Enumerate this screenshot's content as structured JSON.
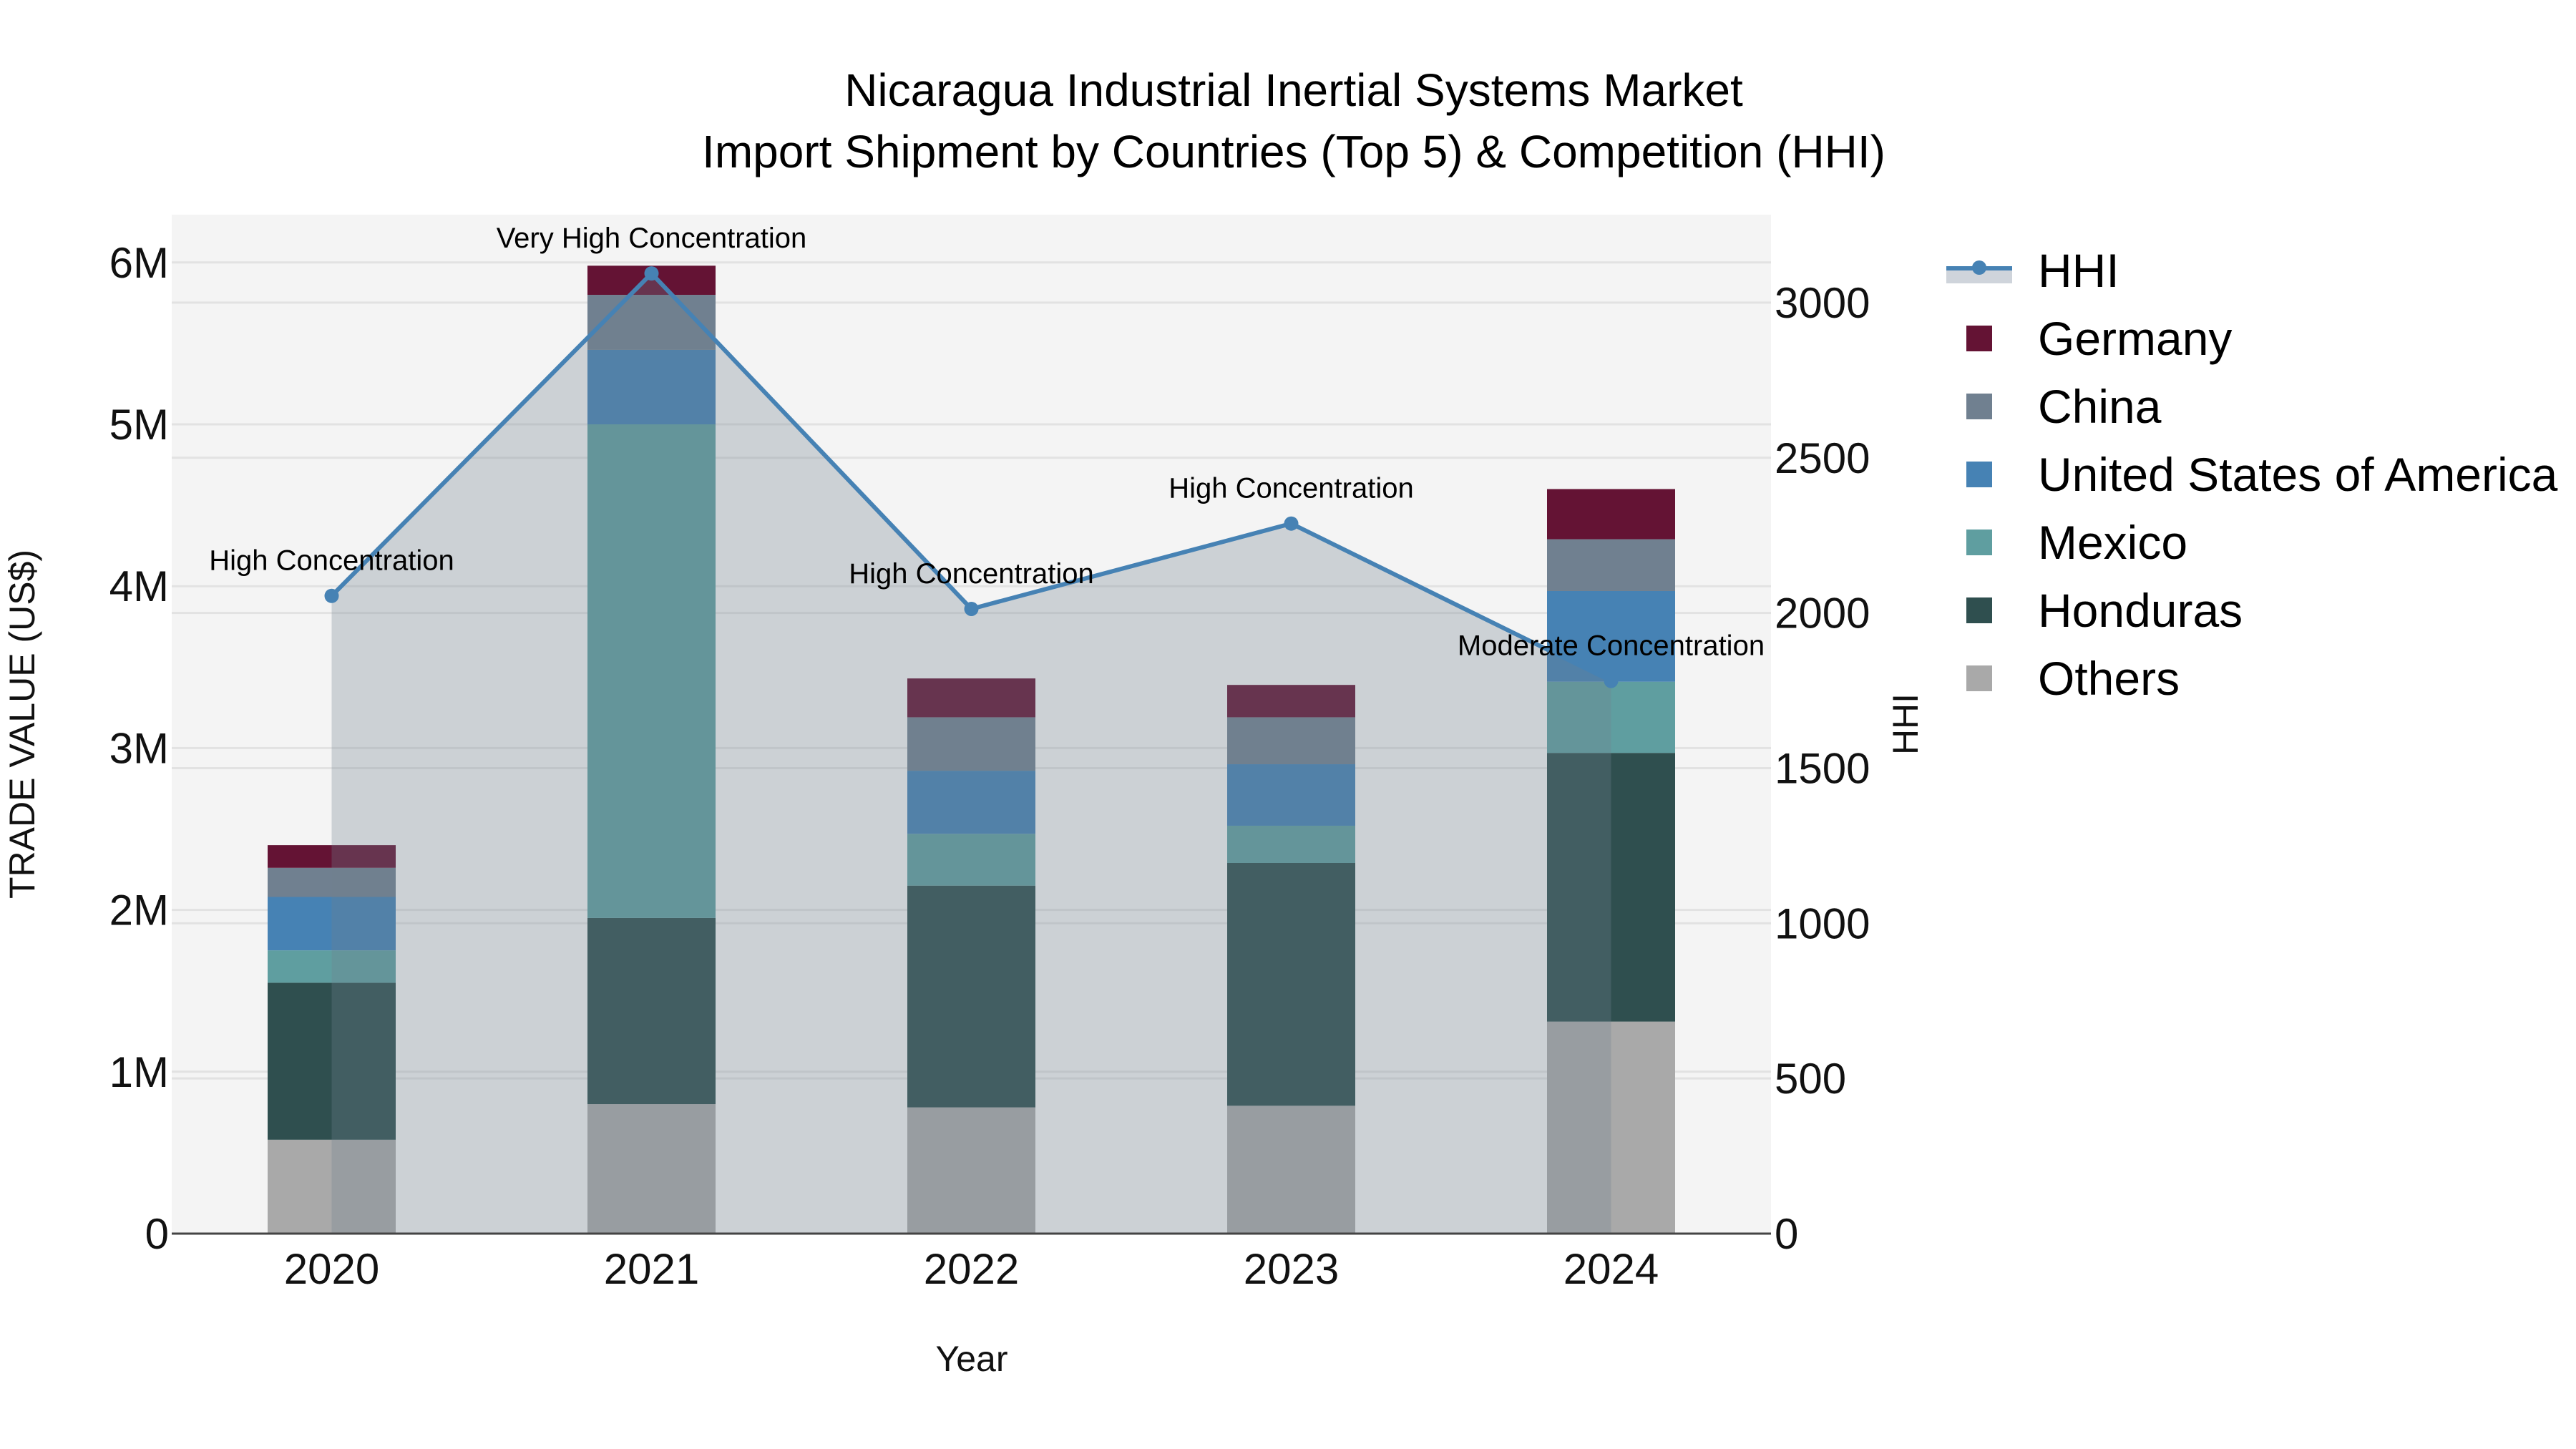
{
  "title": {
    "line1": "Nicaragua Industrial Inertial Systems Market",
    "line2": "Import Shipment by Countries (Top 5) & Competition (HHI)"
  },
  "axes": {
    "x_title": "Year",
    "y_left_title": "TRADE VALUE (US$)",
    "y_right_title": "HHI",
    "y_left_ticks": [
      "0",
      "1M",
      "2M",
      "3M",
      "4M",
      "5M",
      "6M"
    ],
    "y_right_ticks": [
      "0",
      "500",
      "1000",
      "1500",
      "2000",
      "2500",
      "3000"
    ],
    "x_ticks": [
      "2020",
      "2021",
      "2022",
      "2023",
      "2024"
    ]
  },
  "legend": {
    "items": [
      {
        "label": "HHI",
        "type": "line",
        "color": "#4682b4"
      },
      {
        "label": "Germany",
        "type": "bar",
        "color": "#641334"
      },
      {
        "label": "China",
        "type": "bar",
        "color": "#708090"
      },
      {
        "label": "United States of America",
        "type": "bar",
        "color": "#4682b4"
      },
      {
        "label": "Mexico",
        "type": "bar",
        "color": "#5f9ea0"
      },
      {
        "label": "Honduras",
        "type": "bar",
        "color": "#2f4f4f"
      },
      {
        "label": "Others",
        "type": "bar",
        "color": "#a9a9a9"
      }
    ]
  },
  "annotations": [
    {
      "year": "2020",
      "text": "High Concentration"
    },
    {
      "year": "2021",
      "text": "Very High Concentration"
    },
    {
      "year": "2022",
      "text": "High Concentration"
    },
    {
      "year": "2023",
      "text": "High Concentration"
    },
    {
      "year": "2024",
      "text": "Moderate Concentration"
    }
  ],
  "chart_data": {
    "type": "bar",
    "title": "Nicaragua Industrial Inertial Systems Market Import Shipment by Countries (Top 5) & Competition (HHI)",
    "xlabel": "Year",
    "ylabel": "TRADE VALUE (US$)",
    "y2label": "HHI",
    "stacked": true,
    "categories": [
      "2020",
      "2021",
      "2022",
      "2023",
      "2024"
    ],
    "ylim": [
      0,
      6300000
    ],
    "y2lim": [
      0,
      3280
    ],
    "series": [
      {
        "name": "Others",
        "color": "#a9a9a9",
        "values": [
          580000,
          800000,
          780000,
          790000,
          1310000
        ]
      },
      {
        "name": "Honduras",
        "color": "#2f4f4f",
        "values": [
          970000,
          1150000,
          1370000,
          1500000,
          1660000
        ]
      },
      {
        "name": "Mexico",
        "color": "#5f9ea0",
        "values": [
          200000,
          3050000,
          320000,
          230000,
          440000
        ]
      },
      {
        "name": "United States of America",
        "color": "#4682b4",
        "values": [
          330000,
          460000,
          390000,
          380000,
          560000
        ]
      },
      {
        "name": "China",
        "color": "#708090",
        "values": [
          180000,
          340000,
          330000,
          290000,
          320000
        ]
      },
      {
        "name": "Germany",
        "color": "#641334",
        "values": [
          140000,
          180000,
          240000,
          200000,
          310000
        ]
      }
    ],
    "totals": [
      2400000,
      5980000,
      3430000,
      3390000,
      4600000
    ],
    "line_series": {
      "name": "HHI",
      "axis": "right",
      "color": "#4682b4",
      "fill": "tozeroy",
      "values": [
        2055,
        3094,
        2013,
        2288,
        1781
      ],
      "labels": [
        "High Concentration",
        "Very High Concentration",
        "High Concentration",
        "High Concentration",
        "Moderate Concentration"
      ]
    },
    "legend_position": "right",
    "grid": true
  }
}
